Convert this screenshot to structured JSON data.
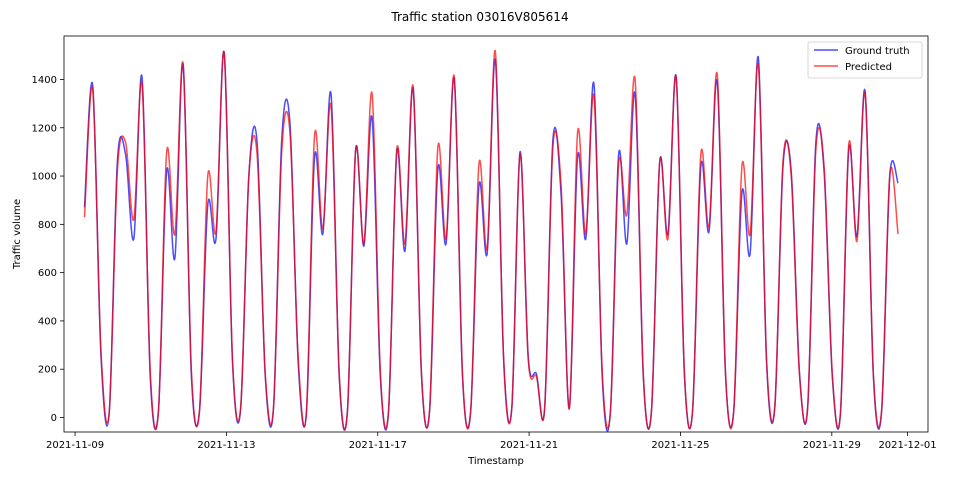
{
  "chart_data": {
    "type": "line",
    "title": "Traffic station 03016V805614",
    "xlabel": "Timestamp",
    "ylabel": "Traffic volume",
    "xlim": [
      "2021-11-08T17:00",
      "2021-12-01T13:00"
    ],
    "ylim": [
      -60,
      1580
    ],
    "x_ticks": [
      "2021-11-09",
      "2021-11-13",
      "2021-11-17",
      "2021-11-21",
      "2021-11-25",
      "2021-11-29",
      "2021-12-01"
    ],
    "y_ticks": [
      0,
      200,
      400,
      600,
      800,
      1000,
      1200,
      1400
    ],
    "grid": false,
    "legend": "top-right",
    "x_start": "2021-11-09T06:00",
    "x_end": "2021-11-30T18:00",
    "series": [
      {
        "name": "Ground truth",
        "color": "#0000ff",
        "values": [
          870,
          1375,
          260,
          15,
          1060,
          1090,
          740,
          1410,
          170,
          30,
          1020,
          660,
          1460,
          180,
          30,
          880,
          740,
          1510,
          240,
          35,
          1000,
          1140,
          170,
          40,
          1150,
          1220,
          230,
          15,
          1080,
          760,
          1340,
          170,
          30,
          1110,
          710,
          1240,
          170,
          25,
          1100,
          690,
          1360,
          180,
          30,
          1030,
          720,
          1400,
          170,
          30,
          960,
          680,
          1480,
          250,
          40,
          1100,
          250,
          180,
          40,
          1150,
          920,
          40,
          1080,
          740,
          1380,
          170,
          25,
          1090,
          720,
          1340,
          170,
          30,
          1060,
          760,
          1410,
          180,
          30,
          1040,
          770,
          1390,
          180,
          25,
          930,
          680,
          1490,
          230,
          40,
          1040,
          1020,
          190,
          40,
          1140,
          1020,
          170,
          20,
          1110,
          750,
          1350,
          170,
          25,
          1000,
          970
        ]
      },
      {
        "name": "Predicted",
        "color": "#ff0000",
        "values": [
          830,
          1360,
          280,
          20,
          1020,
          1140,
          820,
          1380,
          190,
          25,
          1100,
          760,
          1465,
          200,
          30,
          1000,
          770,
          1510,
          250,
          40,
          1000,
          1090,
          180,
          40,
          1100,
          1180,
          250,
          20,
          1170,
          780,
          1290,
          180,
          25,
          1110,
          720,
          1340,
          190,
          30,
          1110,
          720,
          1370,
          190,
          35,
          1120,
          740,
          1410,
          180,
          30,
          1050,
          700,
          1515,
          240,
          40,
          1090,
          240,
          170,
          40,
          1120,
          960,
          35,
          1180,
          760,
          1330,
          190,
          25,
          1050,
          840,
          1400,
          180,
          30,
          1060,
          740,
          1410,
          190,
          30,
          1090,
          790,
          1420,
          190,
          25,
          1040,
          760,
          1460,
          240,
          45,
          1060,
          1000,
          180,
          45,
          1110,
          1040,
          180,
          25,
          1130,
          730,
          1340,
          180,
          30,
          1010,
          760
        ]
      }
    ]
  }
}
